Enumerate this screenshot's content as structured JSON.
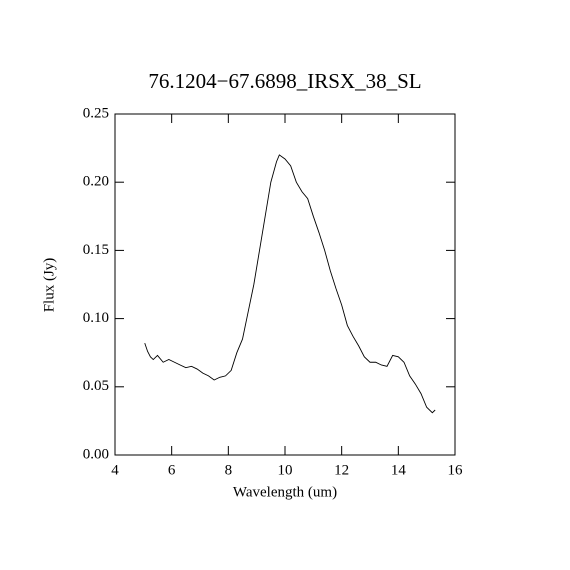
{
  "chart_data": {
    "type": "line",
    "title": "76.1204−67.6898_IRSX_38_SL",
    "x_label": "Wavelength (um)",
    "y_label": "Flux (Jy)",
    "x": [
      5.05,
      5.15,
      5.25,
      5.35,
      5.5,
      5.7,
      5.9,
      6.1,
      6.3,
      6.5,
      6.7,
      6.9,
      7.1,
      7.3,
      7.5,
      7.7,
      7.9,
      8.1,
      8.3,
      8.5,
      8.7,
      8.9,
      9.1,
      9.3,
      9.5,
      9.7,
      9.8,
      10.0,
      10.2,
      10.4,
      10.6,
      10.8,
      11.0,
      11.2,
      11.4,
      11.6,
      11.8,
      12.0,
      12.2,
      12.4,
      12.6,
      12.8,
      13.0,
      13.2,
      13.4,
      13.6,
      13.8,
      14.0,
      14.2,
      14.4,
      14.6,
      14.8,
      15.0,
      15.2,
      15.3
    ],
    "series": [
      {
        "name": "Flux",
        "color": "#000000",
        "values": [
          0.082,
          0.076,
          0.072,
          0.07,
          0.073,
          0.068,
          0.07,
          0.068,
          0.066,
          0.064,
          0.065,
          0.063,
          0.06,
          0.058,
          0.055,
          0.057,
          0.058,
          0.062,
          0.075,
          0.085,
          0.105,
          0.125,
          0.15,
          0.175,
          0.2,
          0.215,
          0.22,
          0.217,
          0.212,
          0.2,
          0.193,
          0.188,
          0.175,
          0.163,
          0.15,
          0.135,
          0.122,
          0.11,
          0.095,
          0.087,
          0.08,
          0.072,
          0.068,
          0.068,
          0.066,
          0.065,
          0.073,
          0.072,
          0.068,
          0.058,
          0.052,
          0.045,
          0.035,
          0.031,
          0.033
        ]
      }
    ],
    "xlim": [
      4,
      16
    ],
    "xticks": [
      4,
      6,
      8,
      10,
      12,
      14,
      16
    ],
    "ylim": [
      0,
      0.25
    ],
    "yticks": [
      {
        "value": 0,
        "label": "0.00"
      },
      0.05,
      {
        "value": 0.1,
        "label": "0.10"
      },
      0.15,
      {
        "value": 0.2,
        "label": "0.20"
      },
      0.25
    ],
    "grid": false
  }
}
